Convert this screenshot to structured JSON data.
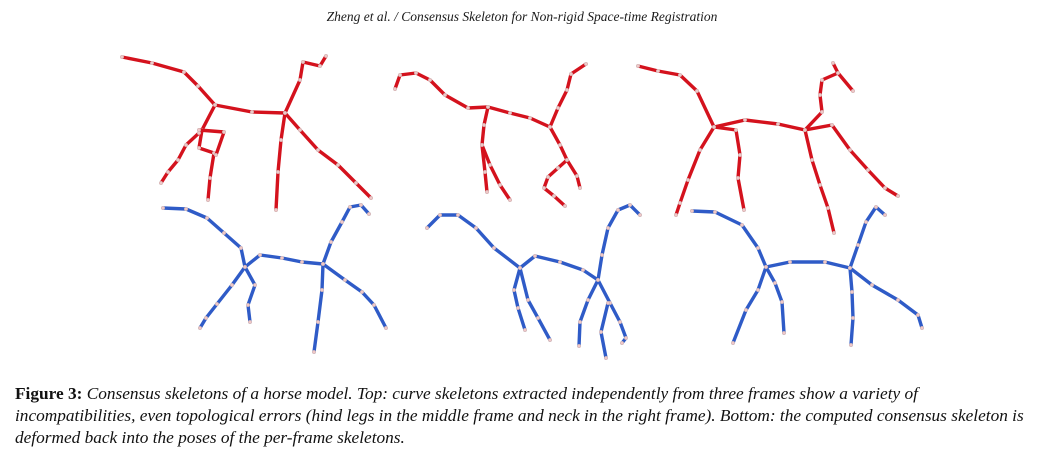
{
  "header": {
    "running_title": "Zheng et al. / Consensus Skeleton for Non-rigid Space-time Registration"
  },
  "figure": {
    "colors": {
      "top_skeleton": "#d4121d",
      "bottom_skeleton": "#2f5bc7",
      "joint_marker": "#f0c8c8"
    }
  },
  "caption": {
    "label": "Figure 3:",
    "text": "Consensus skeletons of a horse model. Top: curve skeletons extracted independently from three frames show a variety of incompatibilities, even topological errors (hind legs in the middle frame and neck in the right frame). Bottom: the computed consensus skeleton is deformed back into the poses of the per-frame skeletons."
  }
}
